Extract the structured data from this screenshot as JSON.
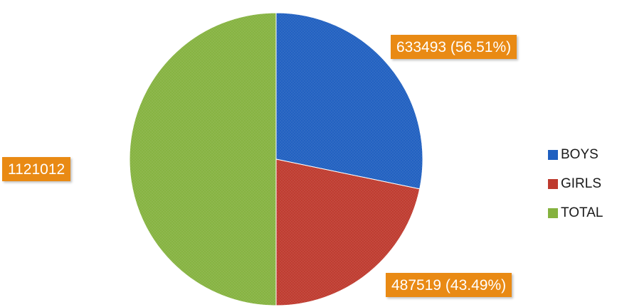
{
  "chart_data": {
    "type": "pie",
    "slices": [
      {
        "name": "BOYS",
        "value": 633493,
        "label": "633493 (56.51%)",
        "color": "#1f5fc0"
      },
      {
        "name": "GIRLS",
        "value": 487519,
        "label": "487519 (43.49%)",
        "color": "#be3a2e"
      },
      {
        "name": "TOTAL",
        "value": 1121012,
        "label": "1121012",
        "color": "#85b23f"
      }
    ],
    "legend": {
      "position": "right",
      "items": [
        "BOYS",
        "GIRLS",
        "TOTAL"
      ]
    }
  }
}
